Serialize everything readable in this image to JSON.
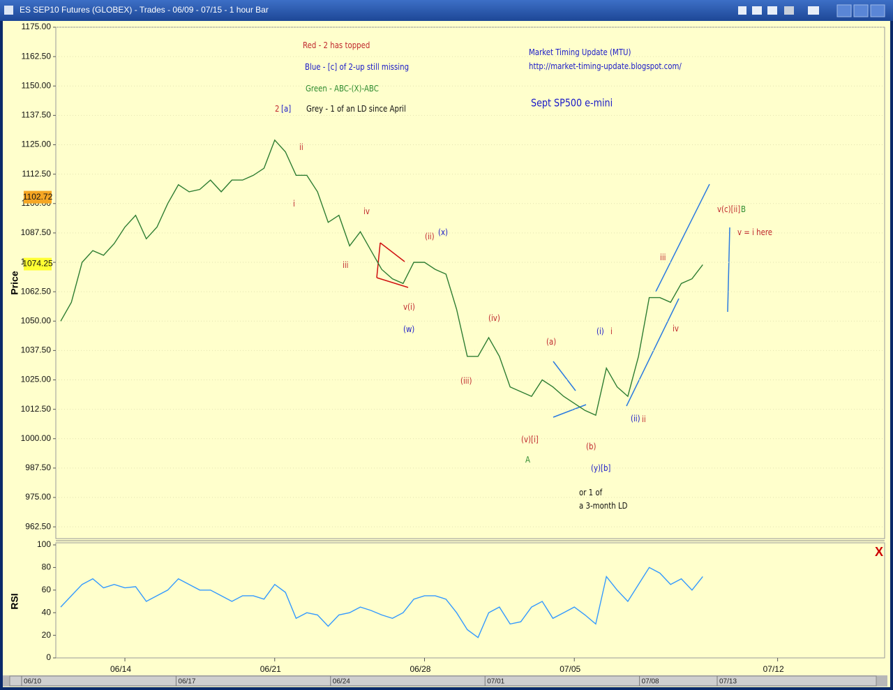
{
  "window_title": "ES SEP10 Futures (GLOBEX) - Trades - 06/09 - 07/15  - 1 hour Bar",
  "close_label": "X",
  "chart_data": [
    {
      "type": "line",
      "ylabel": "Price",
      "ylim": [
        957.5,
        1175
      ],
      "yticks": [
        {
          "value": 962.5,
          "label": "962.50"
        },
        {
          "value": 975,
          "label": "975.00"
        },
        {
          "value": 987.5,
          "label": "987.50"
        },
        {
          "value": 1000,
          "label": "1000.00"
        },
        {
          "value": 1012.5,
          "label": "1012.50"
        },
        {
          "value": 1025,
          "label": "1025.00"
        },
        {
          "value": 1037.5,
          "label": "1037.50"
        },
        {
          "value": 1050,
          "label": "1050.00"
        },
        {
          "value": 1062.5,
          "label": "1062.50"
        },
        {
          "value": 1075,
          "label": "1075.00"
        },
        {
          "value": 1087.5,
          "label": "1087.50"
        },
        {
          "value": 1100,
          "label": "1100.00"
        },
        {
          "value": 1112.5,
          "label": "1112.50"
        },
        {
          "value": 1125,
          "label": "1125.00"
        },
        {
          "value": 1137.5,
          "label": "1137.50"
        },
        {
          "value": 1150,
          "label": "1150.00"
        },
        {
          "value": 1162.5,
          "label": "1162.50"
        },
        {
          "value": 1175,
          "label": "1175.00"
        }
      ],
      "grid": true,
      "series": [
        {
          "name": "ES SEP10",
          "color": "#2e7d32",
          "values": [
            1050,
            1058,
            1075,
            1080,
            1078,
            1083,
            1090,
            1095,
            1085,
            1090,
            1100,
            1108,
            1105,
            1106,
            1110,
            1105,
            1110,
            1110,
            1112,
            1115,
            1127,
            1122,
            1112,
            1112,
            1105,
            1092,
            1095,
            1082,
            1088,
            1080,
            1072,
            1068,
            1066,
            1075,
            1075,
            1072,
            1070,
            1055,
            1035,
            1035,
            1043,
            1035,
            1022,
            1020,
            1018,
            1025,
            1022,
            1018,
            1015,
            1012,
            1010,
            1030,
            1022,
            1018,
            1035,
            1060,
            1060,
            1058,
            1066,
            1068,
            1074,
            null,
            null,
            null,
            null,
            null,
            null,
            null,
            null,
            null,
            null,
            null,
            null,
            null,
            null,
            null,
            null,
            null
          ]
        }
      ],
      "price_markers": [
        {
          "value": 1102.72,
          "label": "1102.72",
          "color": "#f5a623"
        },
        {
          "value": 1074.25,
          "label": "1074.25",
          "color": "#ffff33"
        }
      ],
      "annotations": [
        {
          "text": "Red - 2 has topped",
          "color": "#c0282d"
        },
        {
          "text": "Blue - [c] of 2-up still missing",
          "color": "#1a1ac8"
        },
        {
          "text": "Green - ABC-(X)-ABC",
          "color": "#2e8b2e"
        },
        {
          "text": "Grey - 1 of an LD since April",
          "color": "#111111"
        },
        {
          "text": "Market Timing Update (MTU)",
          "color": "#1a1ac8"
        },
        {
          "text": "http://market-timing-update.blogspot.com/",
          "color": "#1a1ac8"
        },
        {
          "text": "Sept SP500 e-mini",
          "color": "#1a1ac8"
        },
        {
          "text": "2",
          "color": "#c0282d"
        },
        {
          "text": "[a]",
          "color": "#1a1ac8"
        },
        {
          "text": "ii",
          "color": "#c0282d"
        },
        {
          "text": "i",
          "color": "#c0282d"
        },
        {
          "text": "iv",
          "color": "#c0282d"
        },
        {
          "text": "iii",
          "color": "#c0282d"
        },
        {
          "text": "v(i)",
          "color": "#c0282d"
        },
        {
          "text": "(w)",
          "color": "#1a1ac8"
        },
        {
          "text": "(ii)",
          "color": "#c0282d"
        },
        {
          "text": "(x)",
          "color": "#1a1ac8"
        },
        {
          "text": "(iv)",
          "color": "#c0282d"
        },
        {
          "text": "(iii)",
          "color": "#c0282d"
        },
        {
          "text": "(a)",
          "color": "#c0282d"
        },
        {
          "text": "(v)[i]",
          "color": "#c0282d"
        },
        {
          "text": "A",
          "color": "#2e8b2e"
        },
        {
          "text": "(b)",
          "color": "#c0282d"
        },
        {
          "text": "(y)[b]",
          "color": "#1a1ac8"
        },
        {
          "text": "or 1 of",
          "color": "#111111"
        },
        {
          "text": "a 3-month LD",
          "color": "#111111"
        },
        {
          "text": "(i)",
          "color": "#1a1ac8"
        },
        {
          "text": "i",
          "color": "#c0282d"
        },
        {
          "text": "(ii)",
          "color": "#1a1ac8"
        },
        {
          "text": "ii",
          "color": "#c0282d"
        },
        {
          "text": "iii",
          "color": "#c0282d"
        },
        {
          "text": "iv",
          "color": "#c0282d"
        },
        {
          "text": "v(c)[ii]",
          "color": "#c0282d"
        },
        {
          "text": "B",
          "color": "#2e8b2e"
        },
        {
          "text": "v = i here",
          "color": "#c0282d"
        }
      ]
    },
    {
      "type": "line",
      "ylabel": "RSI",
      "ylim": [
        0,
        100
      ],
      "yticks": [
        0,
        20,
        40,
        60,
        80,
        100
      ],
      "categories": [
        null,
        null,
        null,
        null,
        null,
        null,
        "06/14",
        null,
        null,
        null,
        null,
        null,
        null,
        null,
        null,
        null,
        null,
        null,
        null,
        null,
        "06/21",
        null,
        null,
        null,
        null,
        null,
        null,
        null,
        null,
        null,
        null,
        null,
        null,
        null,
        "06/28",
        null,
        null,
        null,
        null,
        null,
        null,
        null,
        null,
        null,
        null,
        null,
        null,
        null,
        "07/05",
        null,
        null,
        null,
        null,
        null,
        null,
        null,
        null,
        null,
        null,
        null,
        null,
        null,
        null,
        null,
        null,
        null,
        null,
        "07/12",
        null,
        null,
        null,
        null,
        null,
        null,
        null,
        null,
        null,
        null
      ],
      "series": [
        {
          "name": "RSI",
          "color": "#3399ff",
          "values": [
            45,
            55,
            65,
            70,
            62,
            65,
            62,
            63,
            50,
            55,
            60,
            70,
            65,
            60,
            60,
            55,
            50,
            55,
            55,
            52,
            65,
            58,
            35,
            40,
            38,
            28,
            38,
            40,
            45,
            42,
            38,
            35,
            40,
            52,
            55,
            55,
            52,
            40,
            25,
            18,
            40,
            45,
            30,
            32,
            45,
            50,
            35,
            40,
            45,
            38,
            30,
            72,
            60,
            50,
            65,
            80,
            75,
            65,
            70,
            60,
            72,
            null,
            null,
            null,
            null,
            null,
            null,
            null,
            null,
            null,
            null,
            null,
            null,
            null,
            null,
            null,
            null,
            null
          ]
        }
      ],
      "scroll_labels": [
        "06/10",
        "06/17",
        "06/24",
        "07/01",
        "07/08",
        "07/13"
      ]
    }
  ]
}
